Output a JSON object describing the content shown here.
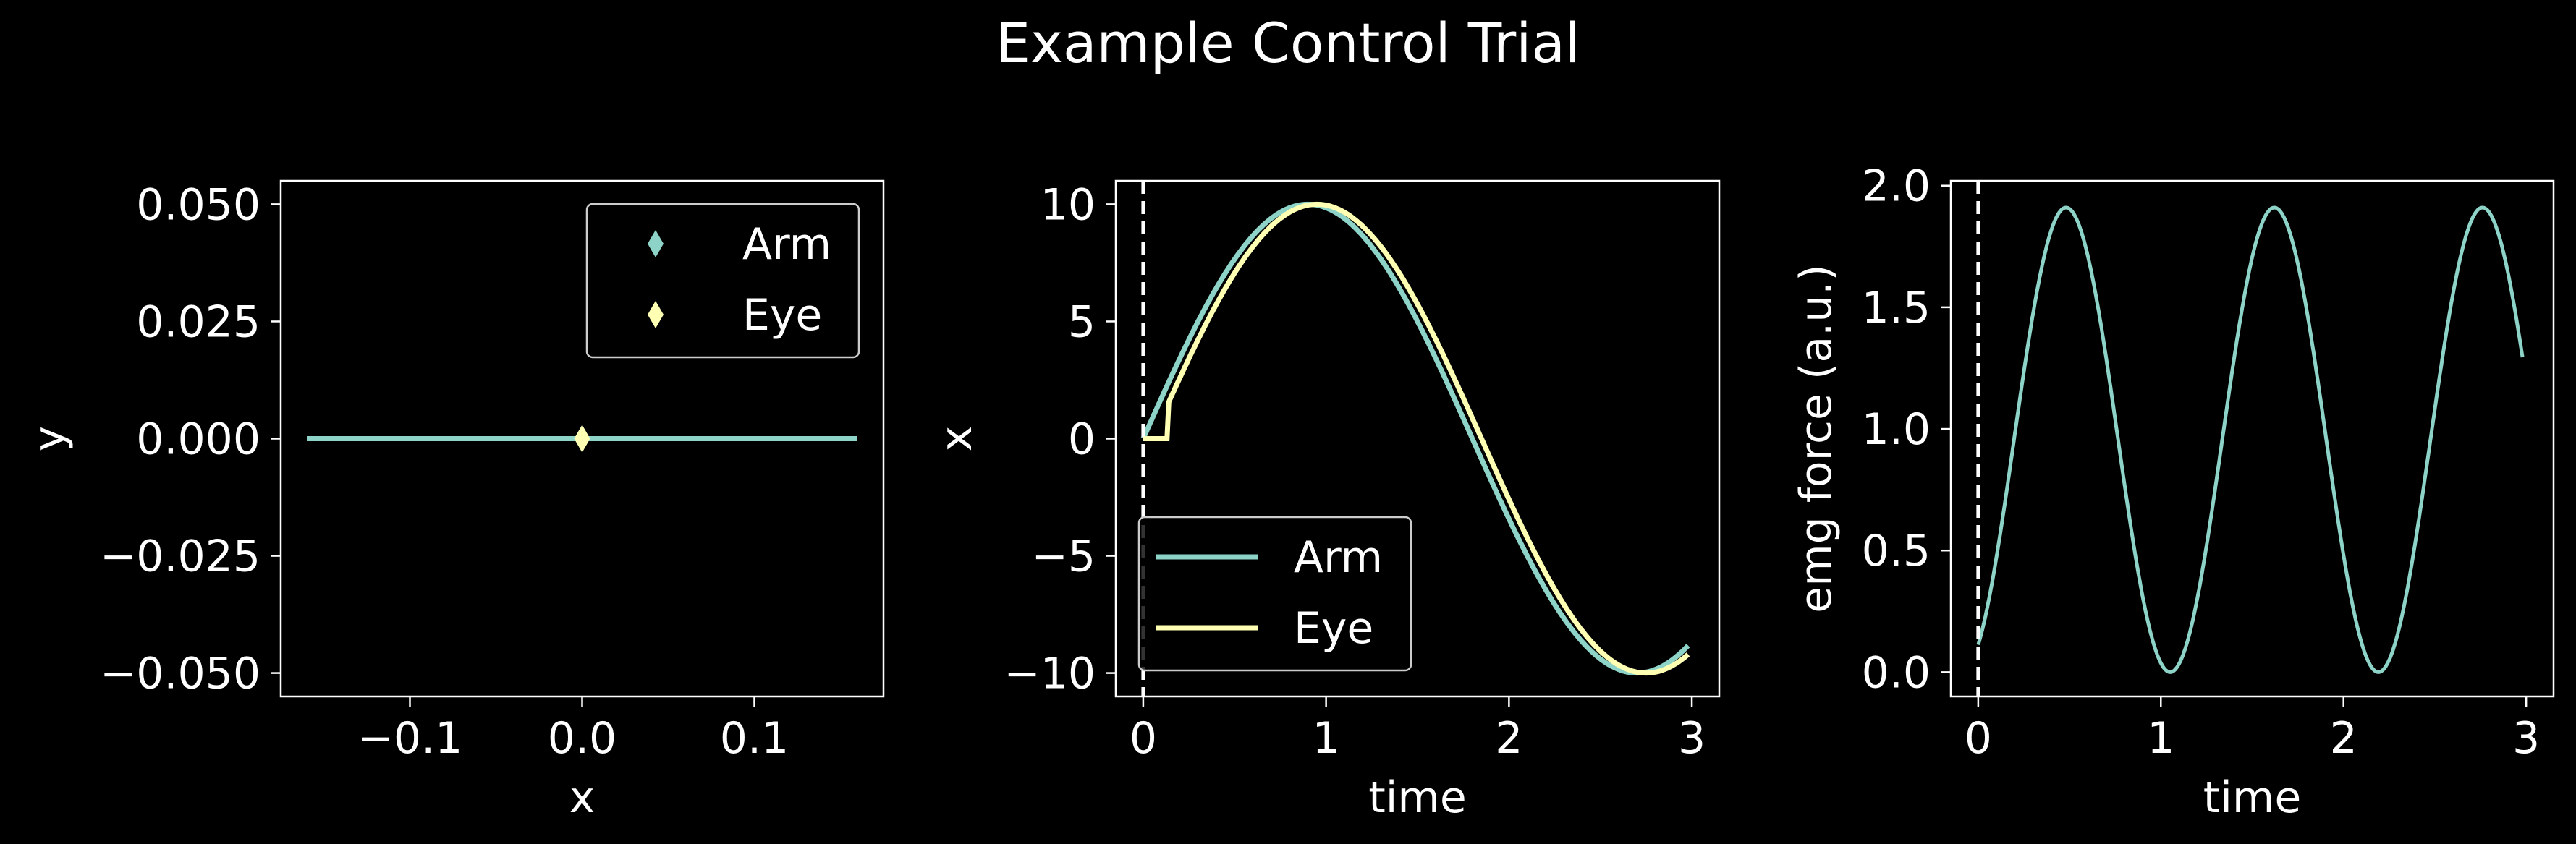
{
  "title": "Example Control Trial",
  "colors": {
    "arm": "#8dd3c7",
    "eye": "#feffb3",
    "background": "#000000",
    "foreground": "#ffffff"
  },
  "chart_data": [
    {
      "type": "scatter",
      "xlabel": "x",
      "ylabel": "y",
      "xlim": [
        -0.175,
        0.175
      ],
      "ylim": [
        -0.055,
        0.055
      ],
      "xticks": [
        -0.1,
        0.0,
        0.1
      ],
      "xtick_labels": [
        "−0.1",
        "0.0",
        "0.1"
      ],
      "yticks": [
        0.05,
        0.025,
        0.0,
        -0.025,
        -0.05
      ],
      "ytick_labels": [
        "0.050",
        "0.025",
        "0.000",
        "−0.025",
        "−0.050"
      ],
      "line": {
        "x": [
          -0.175,
          0.175
        ],
        "y": [
          0,
          0
        ]
      },
      "series": [
        {
          "name": "Arm",
          "marker": "diamond",
          "x": [
            0.0
          ],
          "y": [
            0.0
          ]
        },
        {
          "name": "Eye",
          "marker": "diamond",
          "x": [
            0.0
          ],
          "y": [
            0.0
          ]
        }
      ],
      "legend": "top-right"
    },
    {
      "type": "line",
      "xlabel": "time",
      "ylabel": "x",
      "xlim": [
        -0.15,
        3.15
      ],
      "ylim": [
        -11,
        11
      ],
      "xticks": [
        0,
        1,
        2,
        3
      ],
      "xtick_labels": [
        "0",
        "1",
        "2",
        "3"
      ],
      "yticks": [
        10,
        5,
        0,
        -5,
        -10
      ],
      "ytick_labels": [
        "10",
        "5",
        "0",
        "−5",
        "−10"
      ],
      "vline_x": 0,
      "series": [
        {
          "name": "Arm",
          "amplitude": 10,
          "frequency_hz": 0.2778,
          "t_start": 0,
          "t_end": 2.98,
          "delay": 0
        },
        {
          "name": "Eye",
          "amplitude": 10,
          "frequency_hz": 0.2778,
          "t_start": 0,
          "t_end": 2.98,
          "delay": 0.05,
          "hold_until": 0.13
        }
      ],
      "legend": "lower-left"
    },
    {
      "type": "line",
      "ylabel": "emg force (a.u.)",
      "xlabel": "time",
      "xlim": [
        -0.15,
        3.15
      ],
      "ylim": [
        -0.1,
        2.02
      ],
      "xticks": [
        0,
        1,
        2,
        3
      ],
      "xtick_labels": [
        "0",
        "1",
        "2",
        "3"
      ],
      "yticks": [
        2.0,
        1.5,
        1.0,
        0.5,
        0.0
      ],
      "ytick_labels": [
        "2.0",
        "1.5",
        "1.0",
        "0.5",
        "0.0"
      ],
      "vline_x": 0,
      "series": [
        {
          "name": "emg",
          "offset": 0.955,
          "amplitude": 0.955,
          "frequency_hz": 0.8772,
          "phase": -1.08,
          "t_start": 0,
          "t_end": 2.98
        }
      ]
    }
  ]
}
